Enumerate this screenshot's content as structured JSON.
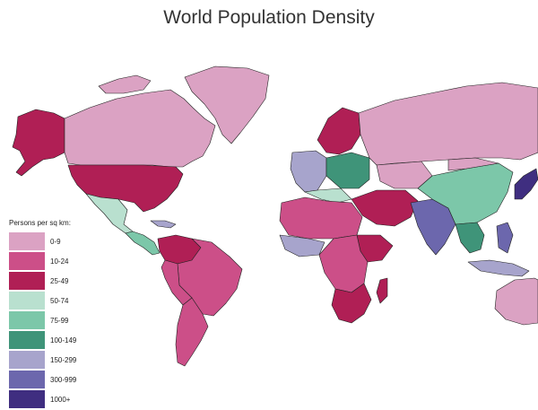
{
  "title": "World Population Density",
  "legend": {
    "title": "Persons per sq km:",
    "classes": [
      {
        "label": "0-9",
        "color": "#dba2c3"
      },
      {
        "label": "10-24",
        "color": "#cc4f88"
      },
      {
        "label": "25-49",
        "color": "#b01f55"
      },
      {
        "label": "50-74",
        "color": "#b9e0cf"
      },
      {
        "label": "75-99",
        "color": "#7cc7a9"
      },
      {
        "label": "100-149",
        "color": "#3f9479"
      },
      {
        "label": "150-299",
        "color": "#a7a4cc"
      },
      {
        "label": "300-999",
        "color": "#6c67ad"
      },
      {
        "label": "1000+",
        "color": "#3f2e80"
      }
    ]
  },
  "background_color": "#ffffff",
  "border_color": "#222222"
}
